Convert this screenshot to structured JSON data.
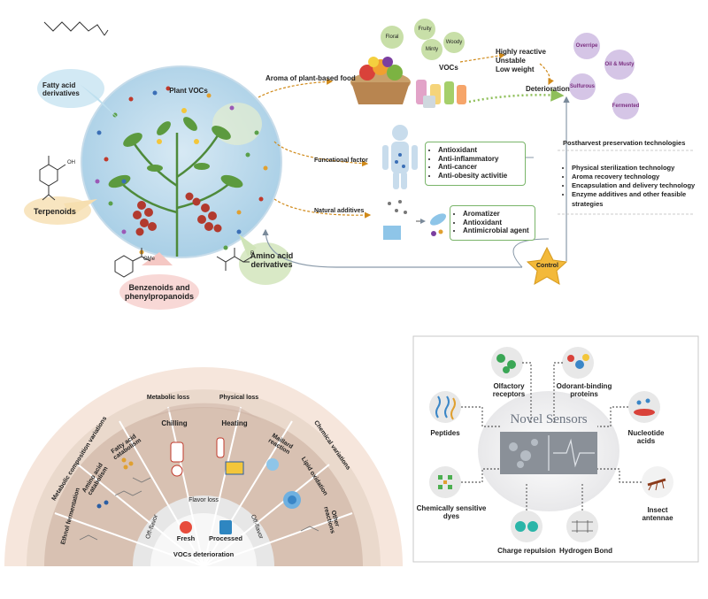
{
  "top": {
    "plant_vocs": "Plant VOCs",
    "fatty_acid": "Fatty acid derivatives",
    "terpenoids": "Terpenoids",
    "benzenoids": "Benzenoids and phenylpropanoids",
    "amino_acid": "Amino acid derivatives",
    "aroma_label": "Aroma of plant-based food",
    "functional_label": "Funcational factor",
    "additives_label": "Natural additives",
    "vocs_label": "VOCs",
    "voc_bubbles": [
      "Floral",
      "Fruity",
      "Minty",
      "Woody"
    ],
    "properties": [
      "Highly reactive",
      "Unstable",
      "Low weight"
    ],
    "deterioration": "Deterioration",
    "deterioration_bubbles": [
      "Overripe",
      "Oil & Musty",
      "Sulfurous",
      "Fermented"
    ],
    "functional_items": [
      "Antioxidant",
      "Anti-inflammatory",
      "Anti-cancer",
      "Anti-obesity activitie"
    ],
    "additive_items": [
      "Aromatizer",
      "Antioxidant",
      "Antimicrobial agent"
    ],
    "control": "Control",
    "postharvest_title": "Postharvest preservation technologies",
    "postharvest_items": [
      "Physical sterilization technology",
      "Aroma recovery technology",
      "Encapsulation and delivery technology",
      "Enzyme additives and other feasible strategies"
    ],
    "me_label": "OMe",
    "oh_label": "OH",
    "r_label": "R",
    "o_label": "O"
  },
  "fan": {
    "outer_left": "Metabolic composition variations",
    "outer_right": "Chemical variations",
    "metabolic_loss": "Metabolic loss",
    "physical_loss": "Physical loss",
    "segments": [
      "Ethnol fermentation",
      "Amino acid catabolism",
      "Fatty acid catabolism",
      "Chilling",
      "Heating",
      "Maillard reaction",
      "Lipid oxidation",
      "Other reactions"
    ],
    "flavor_loss": "Flavor loss",
    "off_flavor_left": "Off-flavor",
    "off_flavor_right": "Off-flavor",
    "fresh": "Fresh",
    "processed": "Processed",
    "vocs_deterioration": "VOCs deterioration"
  },
  "sensors": {
    "title": "Novel Sensors",
    "items": [
      "Olfactory receptors",
      "Odorant-binding proteins",
      "Peptides",
      "Nucleotide acids",
      "Chemically sensitive dyes",
      "Insect antennae",
      "Charge repulsion",
      "Hydrogen Bond"
    ]
  }
}
